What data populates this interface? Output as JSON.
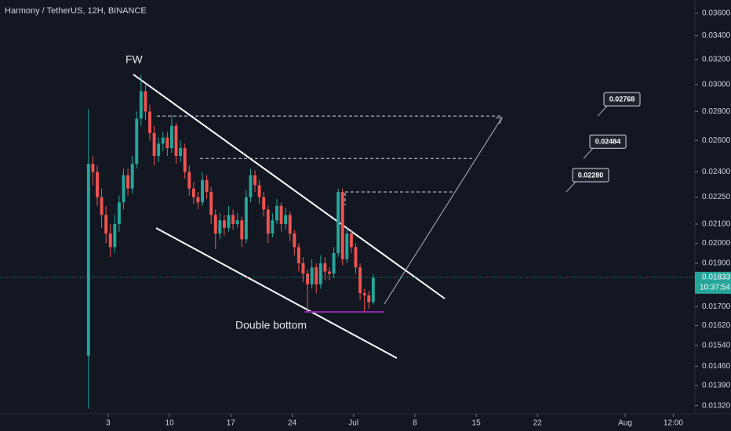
{
  "chart_data": {
    "type": "candlestick",
    "title": "Harmony / TetherUS, 12H, BINANCE",
    "log_scale": true,
    "up_color": "#26a69a",
    "down_color": "#ef5350",
    "xlim": [
      -9.35,
      69.97
    ],
    "xticks": [
      3,
      10,
      17,
      24,
      {
        "value": 31,
        "label": "Jul"
      },
      {
        "value": 38,
        "label": "8"
      },
      {
        "value": 45,
        "label": "15"
      },
      {
        "value": 52,
        "label": "22"
      },
      {
        "value": 62,
        "label": "Aug"
      },
      {
        "value": 67.5,
        "label": "12:00"
      }
    ],
    "ylim": [
      0.01293,
      0.03725
    ],
    "yticks": [
      {
        "value": 0.036,
        "label": "0.03600"
      },
      {
        "value": 0.034,
        "label": "0.03400"
      },
      {
        "value": 0.032,
        "label": "0.03200"
      },
      {
        "value": 0.03,
        "label": "0.03000"
      },
      {
        "value": 0.028,
        "label": "0.02800"
      },
      {
        "value": 0.026,
        "label": "0.02600"
      },
      {
        "value": 0.024,
        "label": "0.02400"
      },
      {
        "value": 0.0225,
        "label": "0.02250"
      },
      {
        "value": 0.021,
        "label": "0.02100"
      },
      {
        "value": 0.02,
        "label": "0.02000"
      },
      {
        "value": 0.019,
        "label": "0.01900"
      },
      {
        "value": 0.017,
        "label": "0.01700"
      },
      {
        "value": 0.0162,
        "label": "0.01620"
      },
      {
        "value": 0.0154,
        "label": "0.01540"
      },
      {
        "value": 0.0146,
        "label": "0.01460"
      },
      {
        "value": 0.0139,
        "label": "0.01390"
      },
      {
        "value": 0.0132,
        "label": "0.01320"
      }
    ],
    "current_price": {
      "value": 0.01833,
      "label": "0.01833"
    },
    "countdown": "10:37:54",
    "x": [
      0.75,
      1.25,
      1.75,
      2.25,
      2.75,
      3.25,
      3.75,
      4.25,
      4.75,
      5.25,
      5.75,
      6.25,
      6.75,
      7.25,
      7.75,
      8.25,
      8.75,
      9.25,
      9.75,
      10.25,
      10.75,
      11.25,
      11.75,
      12.25,
      12.75,
      13.25,
      13.75,
      14.25,
      14.75,
      15.25,
      15.75,
      16.25,
      16.75,
      17.25,
      17.75,
      18.25,
      18.75,
      19.25,
      19.75,
      20.25,
      20.75,
      21.25,
      21.75,
      22.25,
      22.75,
      23.25,
      23.75,
      24.25,
      24.75,
      25.25,
      25.75,
      26.25,
      26.75,
      27.25,
      27.75,
      28.25,
      28.75,
      29.25,
      29.75,
      30.25,
      30.75,
      31.25,
      31.75,
      32.25,
      32.75,
      33.25
    ],
    "candles": [
      [
        0.015,
        0.0282,
        0.0131,
        0.0245
      ],
      [
        0.0245,
        0.025,
        0.0232,
        0.024
      ],
      [
        0.024,
        0.0244,
        0.022,
        0.0225
      ],
      [
        0.0225,
        0.023,
        0.0208,
        0.0215
      ],
      [
        0.0215,
        0.022,
        0.02,
        0.0205
      ],
      [
        0.0205,
        0.021,
        0.0193,
        0.0198
      ],
      [
        0.0198,
        0.0215,
        0.0195,
        0.021
      ],
      [
        0.021,
        0.0226,
        0.0206,
        0.0222
      ],
      [
        0.0222,
        0.0242,
        0.0218,
        0.0238
      ],
      [
        0.0238,
        0.0242,
        0.0226,
        0.023
      ],
      [
        0.023,
        0.025,
        0.0227,
        0.0245
      ],
      [
        0.0245,
        0.028,
        0.0242,
        0.0275
      ],
      [
        0.0275,
        0.0308,
        0.027,
        0.0295
      ],
      [
        0.0295,
        0.03,
        0.0274,
        0.028
      ],
      [
        0.028,
        0.0285,
        0.026,
        0.0265
      ],
      [
        0.0265,
        0.027,
        0.0244,
        0.025
      ],
      [
        0.025,
        0.0262,
        0.0246,
        0.0258
      ],
      [
        0.0258,
        0.0266,
        0.0253,
        0.0262
      ],
      [
        0.0262,
        0.0266,
        0.025,
        0.0255
      ],
      [
        0.0255,
        0.0278,
        0.0252,
        0.027
      ],
      [
        0.027,
        0.0272,
        0.0245,
        0.025
      ],
      [
        0.025,
        0.026,
        0.0246,
        0.0255
      ],
      [
        0.0255,
        0.0258,
        0.0236,
        0.024
      ],
      [
        0.024,
        0.0244,
        0.0226,
        0.023
      ],
      [
        0.023,
        0.0234,
        0.0221,
        0.0225
      ],
      [
        0.0225,
        0.0228,
        0.0218,
        0.0222
      ],
      [
        0.0222,
        0.024,
        0.022,
        0.0235
      ],
      [
        0.0235,
        0.0238,
        0.0224,
        0.0228
      ],
      [
        0.0228,
        0.0231,
        0.021,
        0.0215
      ],
      [
        0.0215,
        0.0218,
        0.0197,
        0.0205
      ],
      [
        0.0205,
        0.0216,
        0.0202,
        0.0212
      ],
      [
        0.0212,
        0.0215,
        0.0204,
        0.0208
      ],
      [
        0.0208,
        0.022,
        0.0206,
        0.0215
      ],
      [
        0.0215,
        0.0218,
        0.0207,
        0.021
      ],
      [
        0.021,
        0.0216,
        0.0208,
        0.0212
      ],
      [
        0.0212,
        0.0214,
        0.0198,
        0.0202
      ],
      [
        0.0202,
        0.0229,
        0.02,
        0.0225
      ],
      [
        0.0225,
        0.0242,
        0.0222,
        0.0238
      ],
      [
        0.0238,
        0.0241,
        0.0228,
        0.0232
      ],
      [
        0.0232,
        0.0235,
        0.0221,
        0.0225
      ],
      [
        0.0225,
        0.0228,
        0.0214,
        0.0218
      ],
      [
        0.0218,
        0.022,
        0.02,
        0.0205
      ],
      [
        0.0205,
        0.0216,
        0.0203,
        0.0212
      ],
      [
        0.0212,
        0.0224,
        0.021,
        0.022
      ],
      [
        0.022,
        0.0222,
        0.0206,
        0.021
      ],
      [
        0.021,
        0.0219,
        0.0207,
        0.0215
      ],
      [
        0.0215,
        0.0217,
        0.0201,
        0.0205
      ],
      [
        0.0205,
        0.0207,
        0.0194,
        0.0198
      ],
      [
        0.0198,
        0.02,
        0.0186,
        0.019
      ],
      [
        0.019,
        0.0193,
        0.0181,
        0.0185
      ],
      [
        0.0185,
        0.0187,
        0.0168,
        0.018
      ],
      [
        0.018,
        0.0192,
        0.0178,
        0.0188
      ],
      [
        0.0188,
        0.019,
        0.0176,
        0.018
      ],
      [
        0.018,
        0.0194,
        0.0178,
        0.019
      ],
      [
        0.019,
        0.0193,
        0.0182,
        0.0186
      ],
      [
        0.0186,
        0.0188,
        0.0182,
        0.0185
      ],
      [
        0.0185,
        0.0198,
        0.0183,
        0.0195
      ],
      [
        0.0195,
        0.023,
        0.0193,
        0.0228
      ],
      [
        0.0228,
        0.023,
        0.0189,
        0.0192
      ],
      [
        0.0192,
        0.0208,
        0.019,
        0.0205
      ],
      [
        0.0205,
        0.0207,
        0.0195,
        0.0198
      ],
      [
        0.0198,
        0.02,
        0.0185,
        0.0188
      ],
      [
        0.0188,
        0.019,
        0.0173,
        0.0176
      ],
      [
        0.0176,
        0.0178,
        0.0168,
        0.0175
      ],
      [
        0.0175,
        0.0177,
        0.0169,
        0.0172
      ],
      [
        0.0172,
        0.0185,
        0.0171,
        0.0183
      ]
    ],
    "targets": [
      {
        "value": 0.02768,
        "label": "0.02768"
      },
      {
        "value": 0.02484,
        "label": "0.02484"
      },
      {
        "value": 0.0228,
        "label": "0.02280"
      }
    ],
    "annotations": [
      "FW",
      "Double bottom"
    ]
  }
}
